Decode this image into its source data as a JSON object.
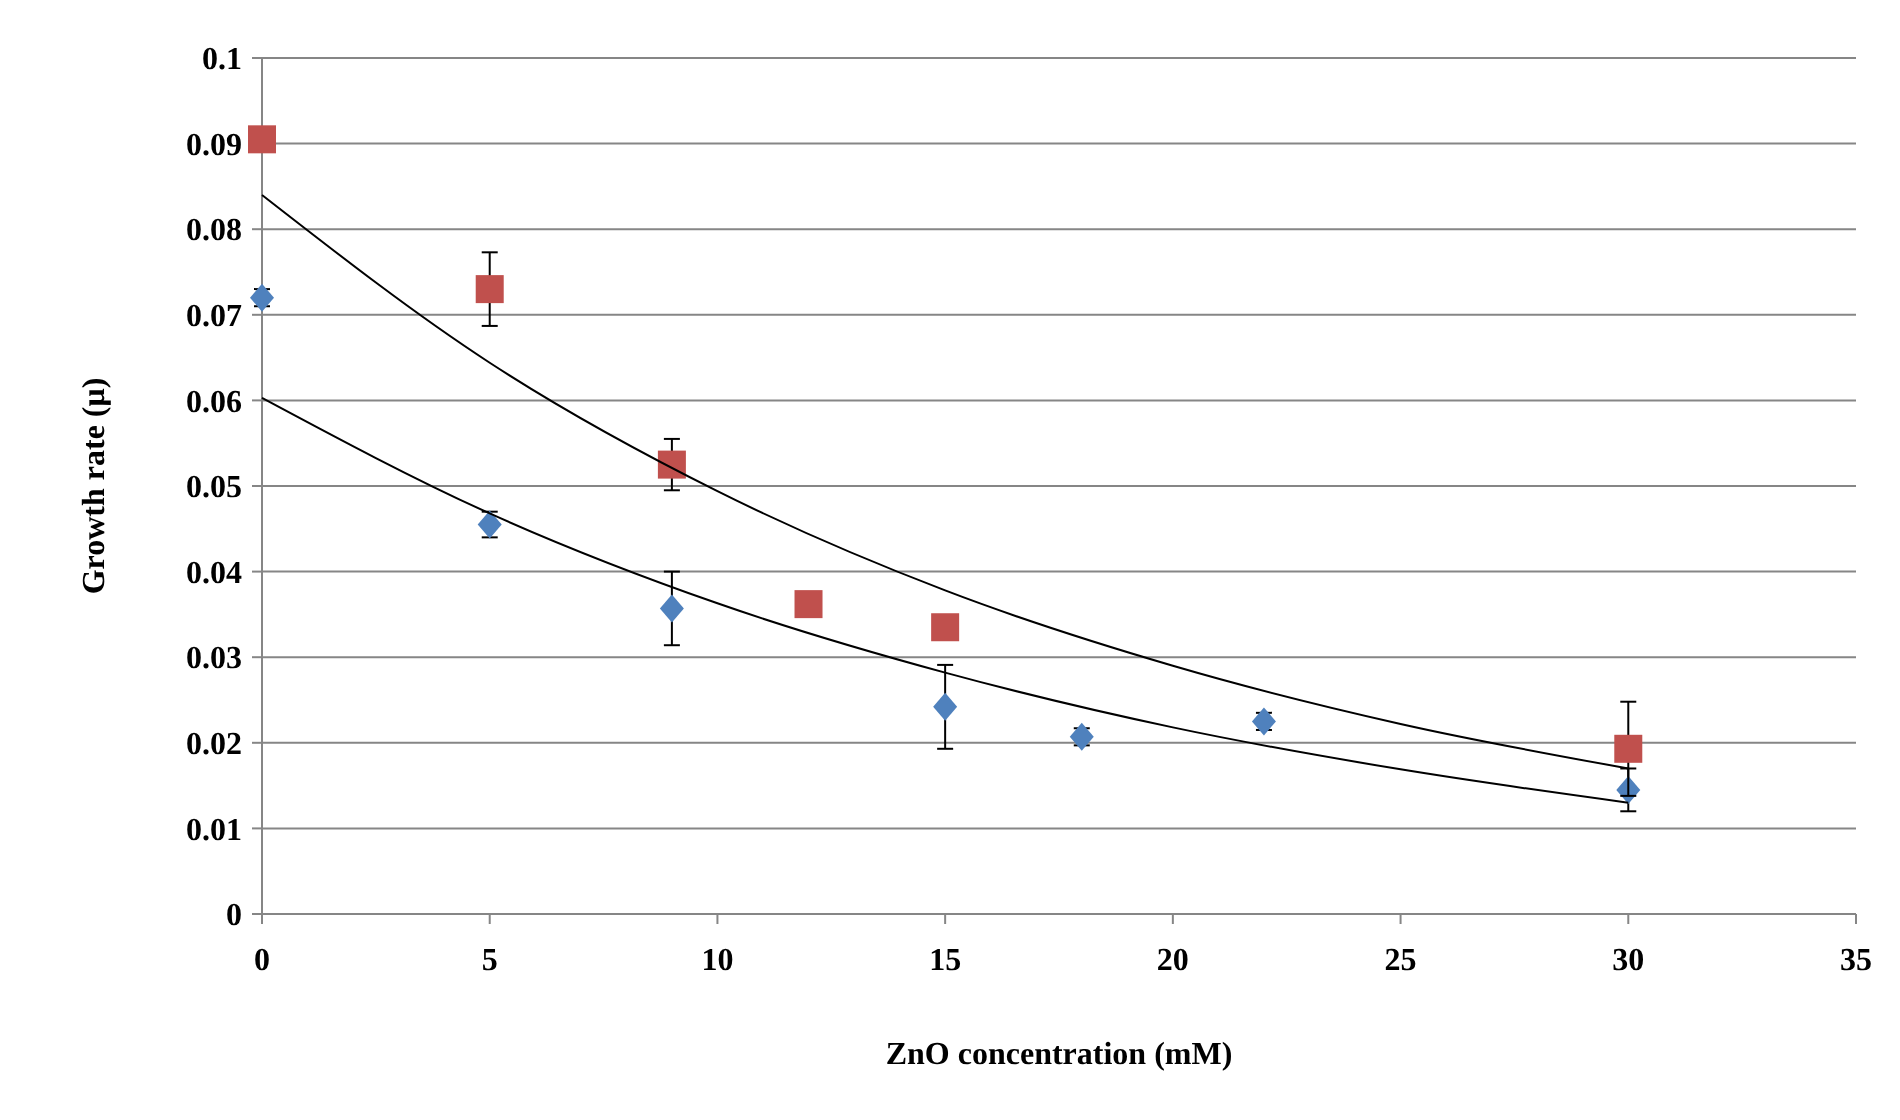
{
  "chart_data": {
    "type": "scatter",
    "xlabel": "ZnO concentration (mM)",
    "ylabel": "Growth rate (μ)",
    "xlim": [
      0,
      35
    ],
    "xticks": [
      0,
      5,
      10,
      15,
      20,
      25,
      30,
      35
    ],
    "ylim": [
      0,
      0.1
    ],
    "yticks": [
      0,
      0.01,
      0.02,
      0.03,
      0.04,
      0.05,
      0.06,
      0.07,
      0.08,
      0.09,
      0.1
    ],
    "grid": "y",
    "series": [
      {
        "marker": "diamond",
        "color": "#4f81bd",
        "x": [
          0,
          5,
          9,
          15,
          18,
          22,
          30
        ],
        "values": [
          0.072,
          0.0455,
          0.0357,
          0.0242,
          0.0207,
          0.0225,
          0.0145
        ],
        "errors": [
          0.001,
          0.0015,
          0.0043,
          0.0049,
          0.001,
          0.001,
          0.0025
        ]
      },
      {
        "marker": "square",
        "color": "#c0504d",
        "x": [
          0,
          5,
          9,
          12,
          15,
          30
        ],
        "values": [
          0.0905,
          0.073,
          0.0525,
          0.0362,
          0.0335,
          0.0193
        ],
        "errors": [
          null,
          0.0043,
          0.003,
          null,
          null,
          0.0055
        ]
      },
      {
        "type": "line",
        "marker": "none",
        "color": "#000000",
        "x": [
          0,
          5,
          10,
          15,
          20,
          25,
          30
        ],
        "values": [
          0.084,
          0.0644,
          0.0494,
          0.0378,
          0.029,
          0.0222,
          0.017
        ]
      },
      {
        "type": "line",
        "marker": "none",
        "color": "#000000",
        "x": [
          0,
          5,
          10,
          15,
          20,
          25,
          30
        ],
        "values": [
          0.0603,
          0.0468,
          0.0363,
          0.0282,
          0.0218,
          0.0169,
          0.013
        ]
      }
    ]
  }
}
